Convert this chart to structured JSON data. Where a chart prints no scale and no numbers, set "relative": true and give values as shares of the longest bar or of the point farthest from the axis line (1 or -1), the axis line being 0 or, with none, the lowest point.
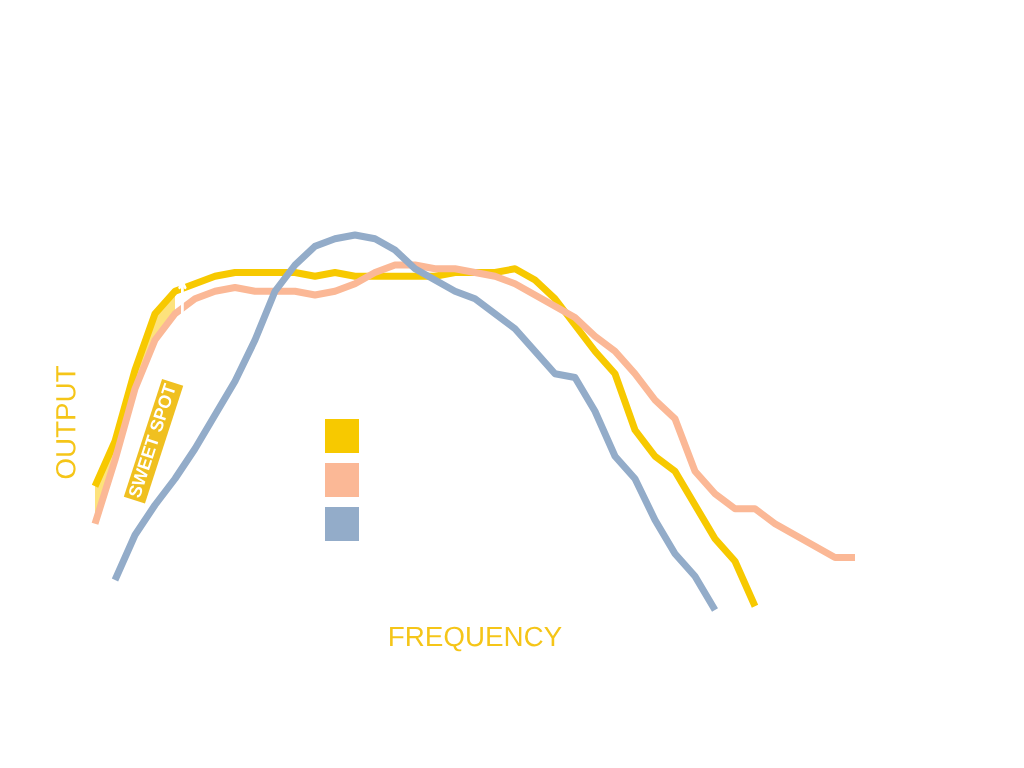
{
  "chart_data": {
    "type": "line",
    "relative": true,
    "xlabel": "FREQUENCY",
    "ylabel": "OUTPUT",
    "categories": [
      null,
      null,
      null,
      null,
      null,
      null,
      null,
      null,
      null,
      null,
      null,
      null,
      null,
      null,
      null,
      null,
      null,
      null,
      null,
      null,
      null,
      null,
      null,
      null,
      null,
      null,
      null,
      null,
      null,
      null,
      null,
      null,
      null,
      null,
      null,
      null,
      null,
      null,
      null
    ],
    "series": [
      {
        "color": "#f7c900",
        "values": [
          0.33,
          0.45,
          0.64,
          0.79,
          0.85,
          0.87,
          0.89,
          0.9,
          0.9,
          0.9,
          0.9,
          0.89,
          0.9,
          0.89,
          0.89,
          0.89,
          0.89,
          0.89,
          0.9,
          0.9,
          0.9,
          0.91,
          0.88,
          0.83,
          0.76,
          0.69,
          0.63,
          0.48,
          0.41,
          0.37,
          0.28,
          0.19,
          0.13,
          0.01,
          null,
          null,
          null,
          null,
          null
        ],
        "lower": [
          0.23,
          0.4,
          0.59,
          0.72,
          0.79,
          null,
          null,
          null,
          null,
          null,
          null,
          null,
          null,
          null,
          null,
          null,
          null,
          null,
          null,
          null,
          null,
          null,
          null,
          null,
          null,
          null,
          null,
          null,
          null,
          null,
          null,
          null,
          null,
          null,
          null,
          null,
          null,
          null,
          null
        ],
        "upper": [
          0.33,
          0.45,
          0.64,
          0.79,
          0.85,
          null,
          null,
          null,
          null,
          null,
          null,
          null,
          null,
          null,
          null,
          null,
          null,
          null,
          null,
          null,
          null,
          null,
          null,
          null,
          null,
          null,
          null,
          null,
          null,
          null,
          null,
          null,
          null,
          null,
          null,
          null,
          null,
          null,
          null
        ]
      },
      {
        "color": "#fbb896",
        "values": [
          0.23,
          0.4,
          0.59,
          0.72,
          0.79,
          0.83,
          0.85,
          0.86,
          0.85,
          0.85,
          0.85,
          0.84,
          0.85,
          0.87,
          0.9,
          0.92,
          0.92,
          0.91,
          0.91,
          0.9,
          0.89,
          0.87,
          0.84,
          0.81,
          0.78,
          0.73,
          0.69,
          0.63,
          0.56,
          0.51,
          0.37,
          0.31,
          0.27,
          0.27,
          0.23,
          0.2,
          0.17,
          0.14,
          0.14
        ]
      },
      {
        "color": "#93acc9",
        "values": [
          null,
          0.08,
          0.2,
          0.28,
          0.35,
          0.43,
          0.52,
          0.61,
          0.72,
          0.85,
          0.92,
          0.97,
          0.99,
          1.0,
          0.99,
          0.96,
          0.91,
          0.88,
          0.85,
          0.83,
          0.79,
          0.75,
          0.69,
          0.63,
          0.62,
          0.53,
          0.41,
          0.35,
          0.24,
          0.15,
          0.09,
          0.0,
          null,
          null,
          null,
          null,
          null,
          null,
          null
        ]
      }
    ],
    "annotations": [
      "SWEET SPOT"
    ],
    "grid": false
  }
}
